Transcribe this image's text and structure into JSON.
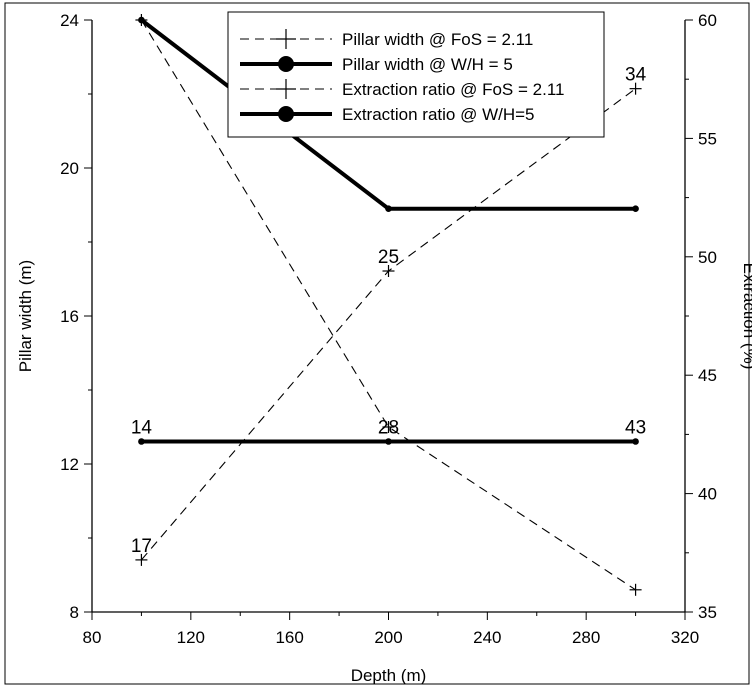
{
  "chart_data": {
    "type": "line",
    "xlabel": "Depth (m)",
    "ylabel": "Pillar width (m)",
    "y2label": "Extraction (%)",
    "xlim": [
      80,
      320
    ],
    "ylim": [
      8,
      24
    ],
    "y2lim": [
      35,
      60
    ],
    "x_ticks": [
      80,
      120,
      160,
      200,
      240,
      280,
      320
    ],
    "y_ticks": [
      8,
      12,
      16,
      20,
      24
    ],
    "y2_ticks": [
      35,
      40,
      45,
      50,
      55,
      60
    ],
    "grid": false,
    "legend_position": "top-center",
    "series": [
      {
        "name": "Pillar width @ FoS = 2.11",
        "axis": "left",
        "style": "dashed",
        "marker": "plus",
        "x": [
          100,
          200,
          300
        ],
        "y": [
          24,
          13.0,
          8.6
        ]
      },
      {
        "name": "Pillar width @ W/H = 5",
        "axis": "left",
        "style": "solid-thick",
        "marker": "dot",
        "x": [
          100,
          200,
          300
        ],
        "y": [
          24,
          18.9,
          18.9
        ]
      },
      {
        "name": "Extraction ratio @ FoS = 2.11",
        "axis": "right",
        "style": "dashed",
        "marker": "plus",
        "x": [
          100,
          200,
          300
        ],
        "y": [
          37.2,
          49.4,
          57.1
        ]
      },
      {
        "name": "Extraction ratio @ W/H=5",
        "axis": "right",
        "style": "solid-thick",
        "marker": "dot",
        "x": [
          100,
          200,
          300
        ],
        "y": [
          42.2,
          42.2,
          42.2
        ]
      }
    ],
    "annotations": [
      {
        "text": "34",
        "x": 300,
        "y": 57.1,
        "axis": "right"
      },
      {
        "text": "25",
        "x": 200,
        "y": 49.4,
        "axis": "right"
      },
      {
        "text": "17",
        "x": 100,
        "y": 37.2,
        "axis": "right"
      },
      {
        "text": "14",
        "x": 100,
        "y": 42.2,
        "axis": "right"
      },
      {
        "text": "28",
        "x": 200,
        "y": 42.2,
        "axis": "right"
      },
      {
        "text": "43",
        "x": 300,
        "y": 42.2,
        "axis": "right"
      }
    ]
  }
}
